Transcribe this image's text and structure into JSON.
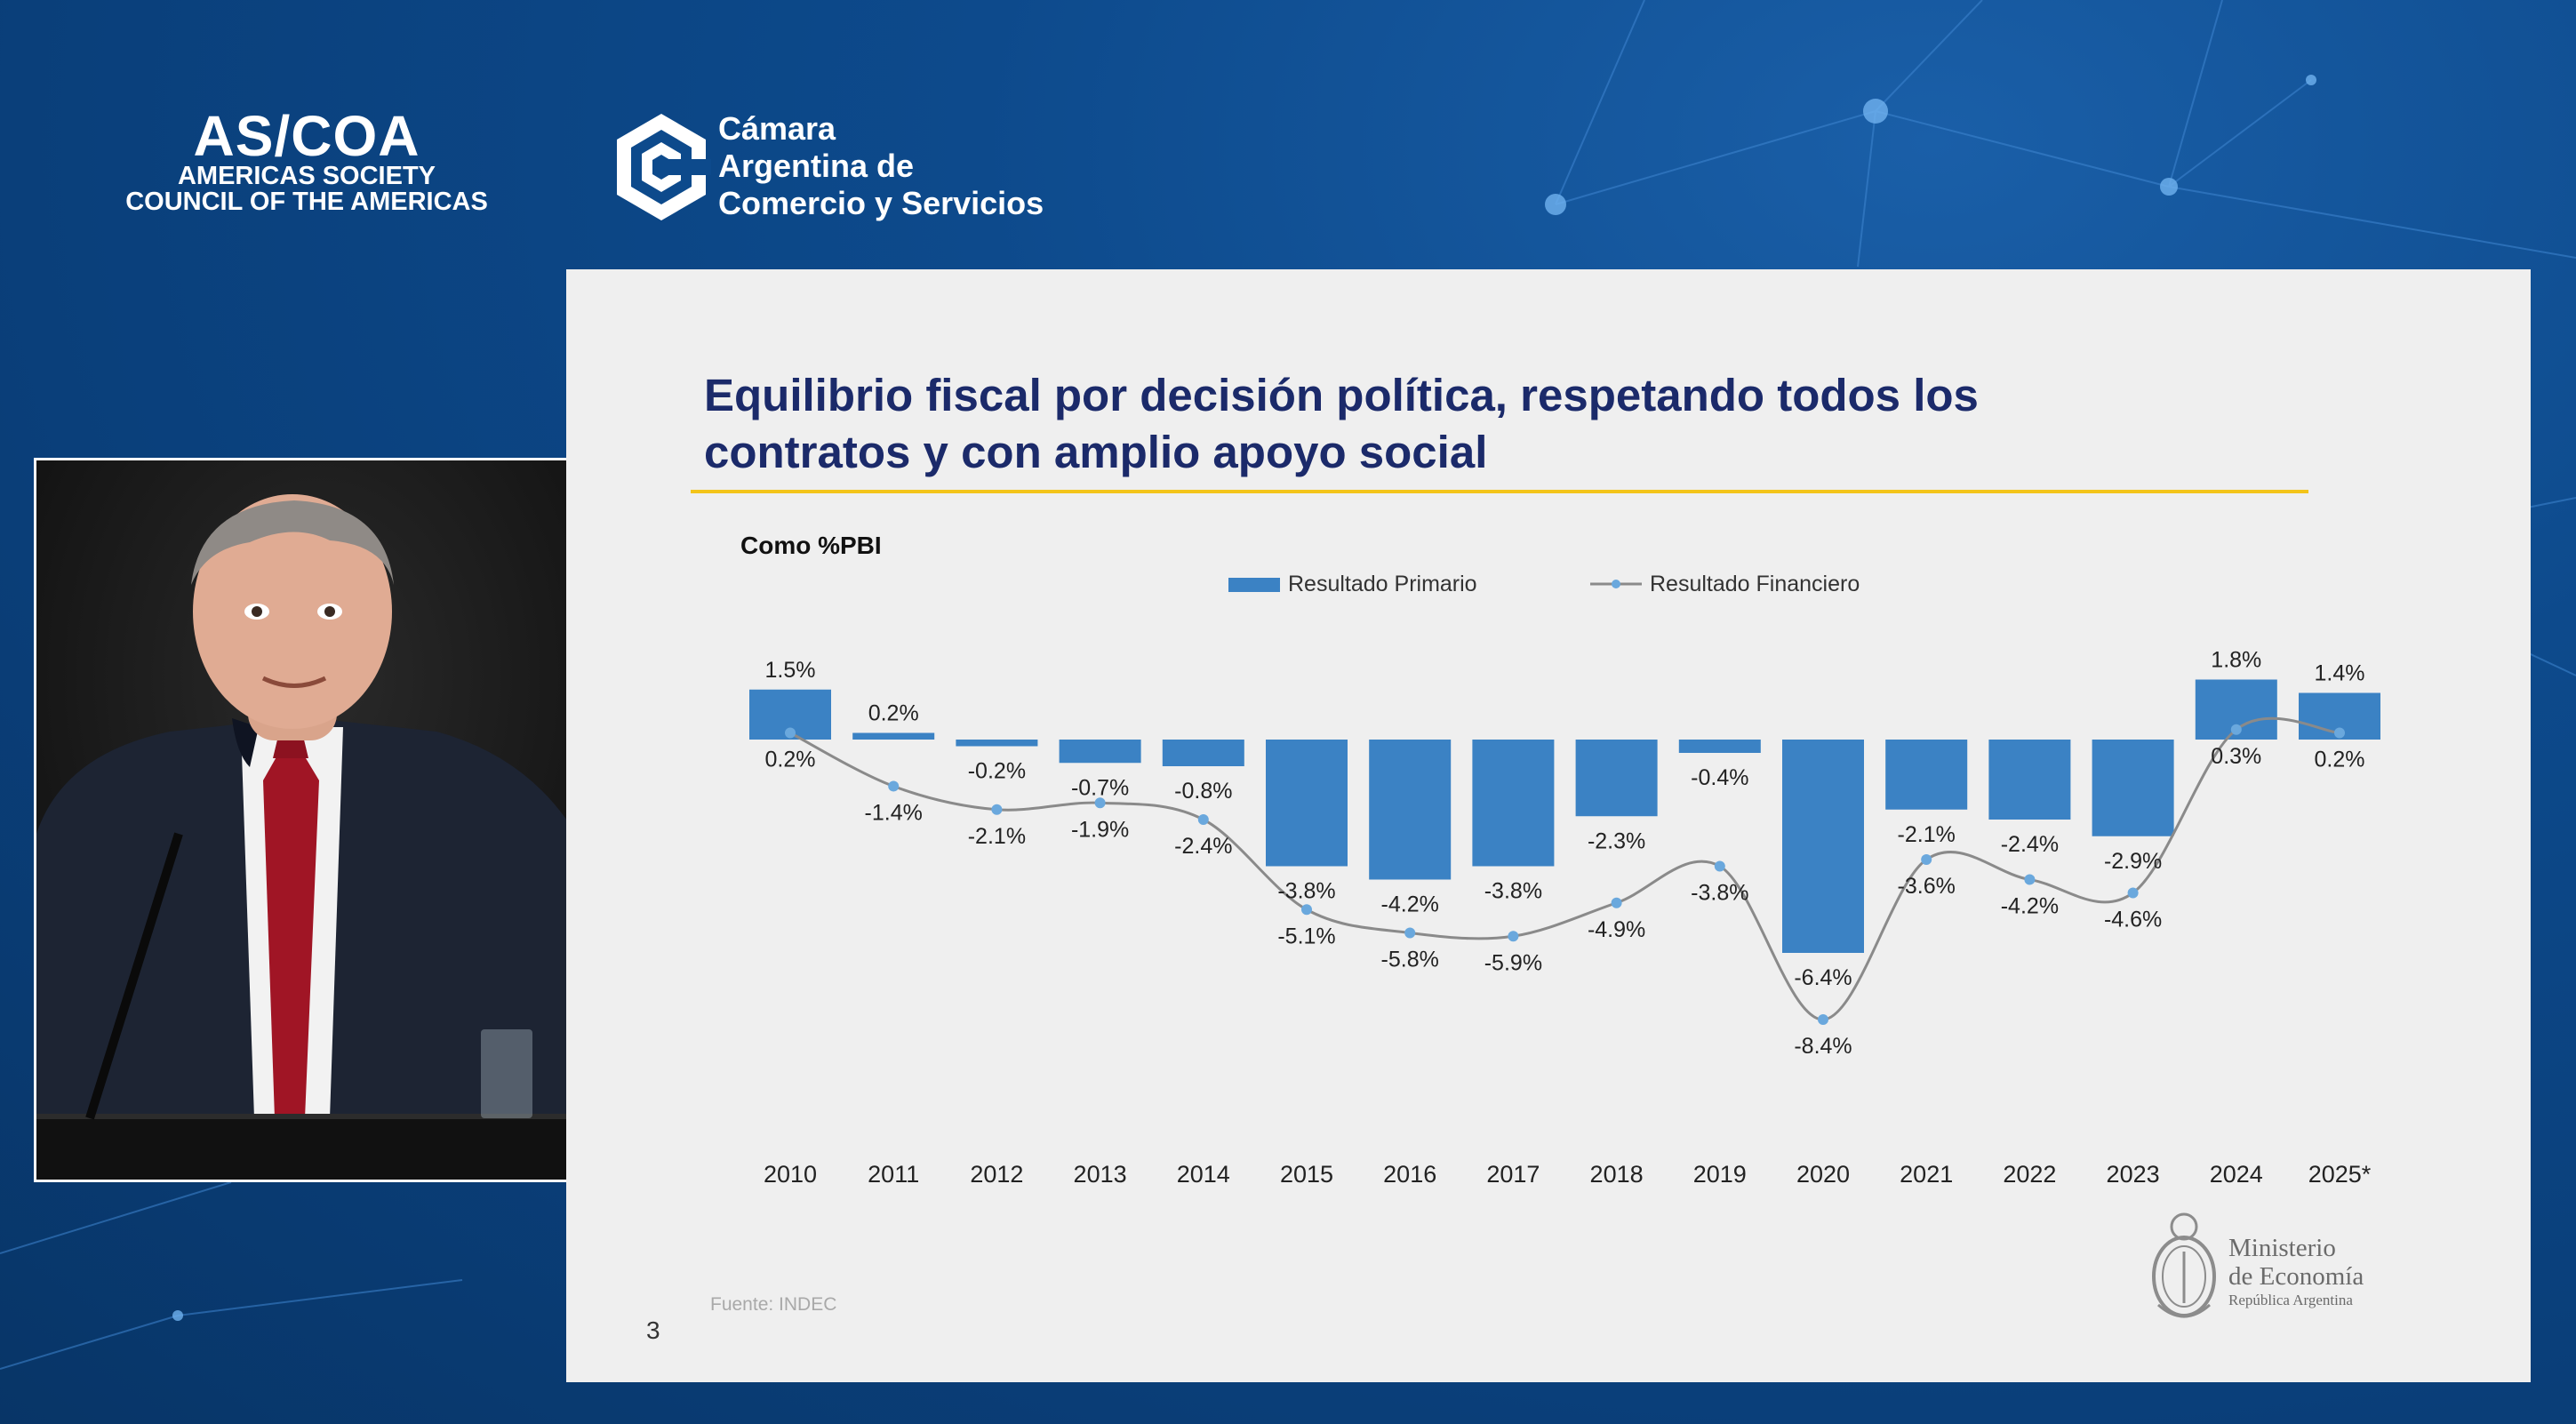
{
  "header": {
    "ascoa_logo": {
      "main": "AS/COA",
      "line1": "AMERICAS SOCIETY",
      "line2": "COUNCIL OF THE AMERICAS"
    },
    "camara_logo": {
      "lines": [
        "Cámara",
        "Argentina de",
        "Comercio y Servicios"
      ]
    }
  },
  "slide": {
    "title_line1": "Equilibrio fiscal por decisión política, respetando todos los",
    "title_line2": "contratos y con amplio apoyo social",
    "units_label": "Como %PBI",
    "source": "Fuente: INDEC",
    "page_number": "3",
    "ministry": {
      "line1": "Ministerio",
      "line2": "de Economía",
      "line3": "República Argentina"
    },
    "colors": {
      "title": "#1b2a6a",
      "rule": "#f3c41a",
      "bar": "#3b82c4",
      "line": "#8a8a8a",
      "marker": "#6aa8dd"
    }
  },
  "chart_data": {
    "type": "bar",
    "categories": [
      "2010",
      "2011",
      "2012",
      "2013",
      "2014",
      "2015",
      "2016",
      "2017",
      "2018",
      "2019",
      "2020",
      "2021",
      "2022",
      "2023",
      "2024",
      "2025*"
    ],
    "series": [
      {
        "name": "Resultado Primario",
        "type": "bar",
        "values": [
          1.5,
          0.2,
          -0.2,
          -0.7,
          -0.8,
          -3.8,
          -4.2,
          -3.8,
          -2.3,
          -0.4,
          -6.4,
          -2.1,
          -2.4,
          -2.9,
          1.8,
          1.4
        ],
        "labels": [
          "1.5%",
          "0.2%",
          "-0.2%",
          "-0.7%",
          "-0.8%",
          "-3.8%",
          "-4.2%",
          "-3.8%",
          "-2.3%",
          "-0.4%",
          "-6.4%",
          "-2.1%",
          "-2.4%",
          "-2.9%",
          "1.8%",
          "1.4%"
        ]
      },
      {
        "name": "Resultado Financiero",
        "type": "line",
        "values": [
          0.2,
          -1.4,
          -2.1,
          -1.9,
          -2.4,
          -5.1,
          -5.8,
          -5.9,
          -4.9,
          -3.8,
          -8.4,
          -3.6,
          -4.2,
          -4.6,
          0.3,
          0.2
        ],
        "labels": [
          "0.2%",
          "-1.4%",
          "-2.1%",
          "-1.9%",
          "-2.4%",
          "-5.1%",
          "-5.8%",
          "-5.9%",
          "-4.9%",
          "-3.8%",
          "-8.4%",
          "-3.6%",
          "-4.2%",
          "-4.6%",
          "0.3%",
          "0.2%"
        ]
      }
    ],
    "ylabel": "Como %PBI",
    "ylim": [
      -9,
      2.5
    ],
    "grid": false,
    "legend": "top-center"
  }
}
